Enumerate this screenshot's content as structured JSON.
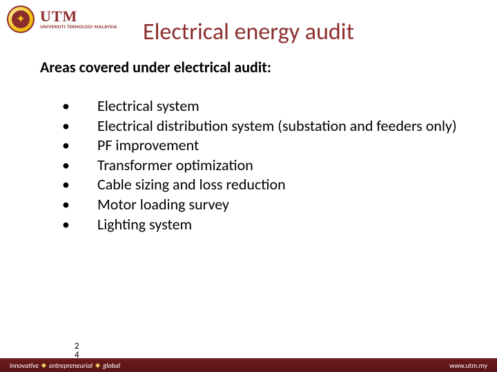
{
  "logo": {
    "brand_color": "#8b2d2d",
    "gold_color": "#f5c518",
    "text_color": "#222222",
    "utm": "UTM",
    "sub": "UNIVERSITI TEKNOLOGI MALAYSIA",
    "glyph": "✦"
  },
  "title": {
    "text": "Electrical energy audit",
    "color": "#8b2d2d",
    "fontsize": 34
  },
  "subtitle": {
    "text": "Areas covered under electrical audit:",
    "color": "#000000",
    "fontsize": 22
  },
  "bullets": {
    "color": "#000000",
    "fontsize": 22,
    "items": [
      "Electrical system",
      "Electrical distribution system  (substation and feeders only)",
      "PF improvement",
      "Transformer optimization",
      "Cable sizing and loss reduction",
      "Motor loading survey",
      "Lighting system"
    ]
  },
  "page": {
    "a": "2",
    "b": "4"
  },
  "footer": {
    "bg_color": "#5c1414",
    "words": [
      "innovative",
      "entrepreneurial",
      "global"
    ],
    "url": "www.utm.my"
  }
}
